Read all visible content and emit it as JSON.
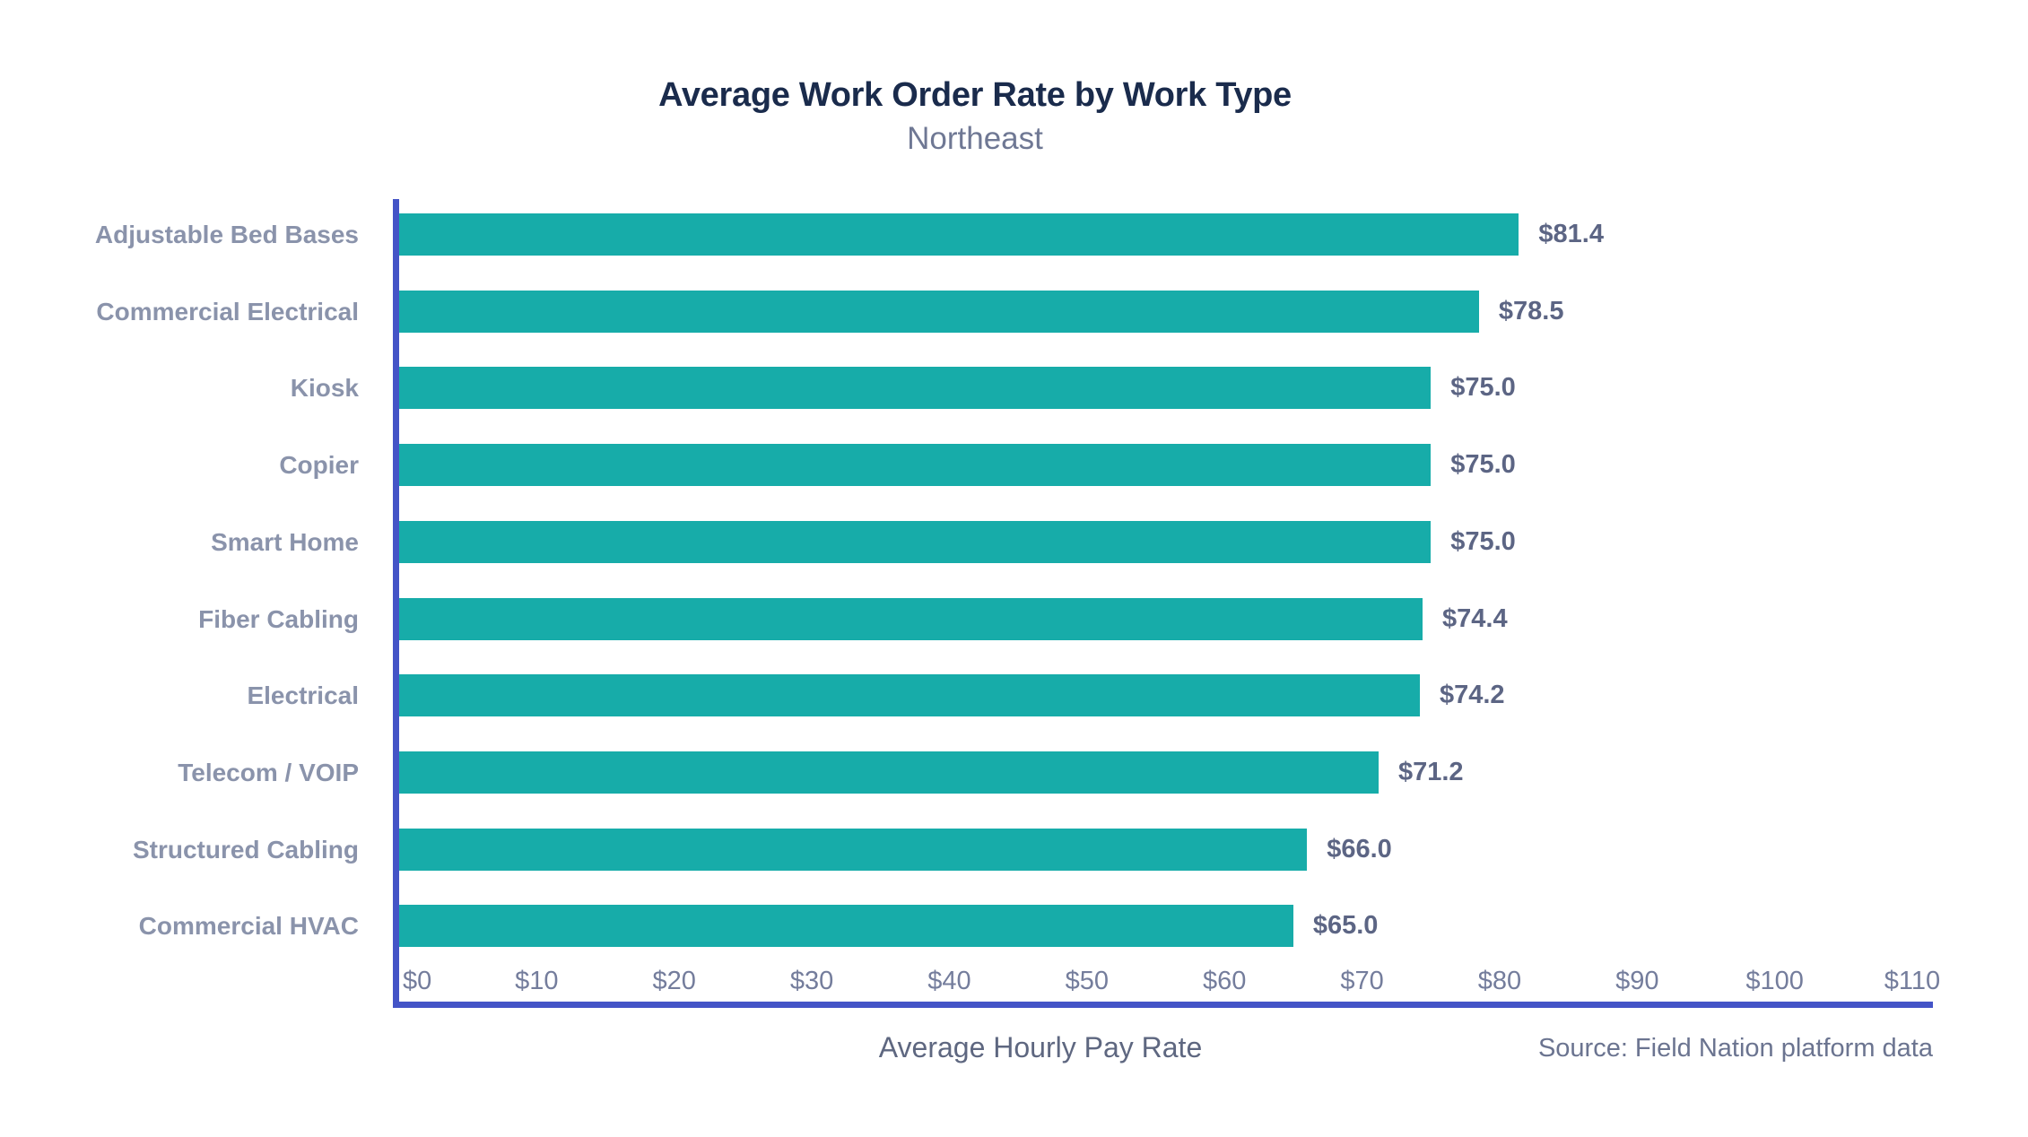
{
  "chart_data": {
    "type": "bar",
    "orientation": "horizontal",
    "title": "Average Work Order Rate by Work Type",
    "subtitle": "Northeast",
    "xlabel": "Average Hourly Pay Rate",
    "source": "Source: Field Nation platform data",
    "categories": [
      "Adjustable Bed Bases",
      "Commercial Electrical",
      "Kiosk",
      "Copier",
      "Smart Home",
      "Fiber Cabling",
      "Electrical",
      "Telecom / VOIP",
      "Structured Cabling",
      "Commercial HVAC"
    ],
    "values": [
      81.4,
      78.5,
      75.0,
      75.0,
      75.0,
      74.4,
      74.2,
      71.2,
      66.0,
      65.0
    ],
    "value_labels": [
      "$81.4",
      "$78.5",
      "$75.0",
      "$75.0",
      "$75.0",
      "$74.4",
      "$74.2",
      "$71.2",
      "$66.0",
      "$65.0"
    ],
    "x_ticks": [
      "$0",
      "$10",
      "$20",
      "$30",
      "$40",
      "$50",
      "$60",
      "$70",
      "$80",
      "$90",
      "$100",
      "$110"
    ],
    "x_tick_values": [
      0,
      10,
      20,
      30,
      40,
      50,
      60,
      70,
      80,
      90,
      100,
      110
    ],
    "xlim": [
      0,
      111.5
    ],
    "grid": false,
    "legend": false
  },
  "colors": {
    "background": "#FFFFFF",
    "bar": "#17ACA9",
    "axis": "#4454C7",
    "title": "#1A2B4C",
    "subtitle": "#6F7894",
    "category_label": "#8A93AB",
    "value_label": "#5C6584",
    "tick_label": "#747D9C",
    "axis_label": "#5E6780",
    "source": "#6B7490"
  }
}
